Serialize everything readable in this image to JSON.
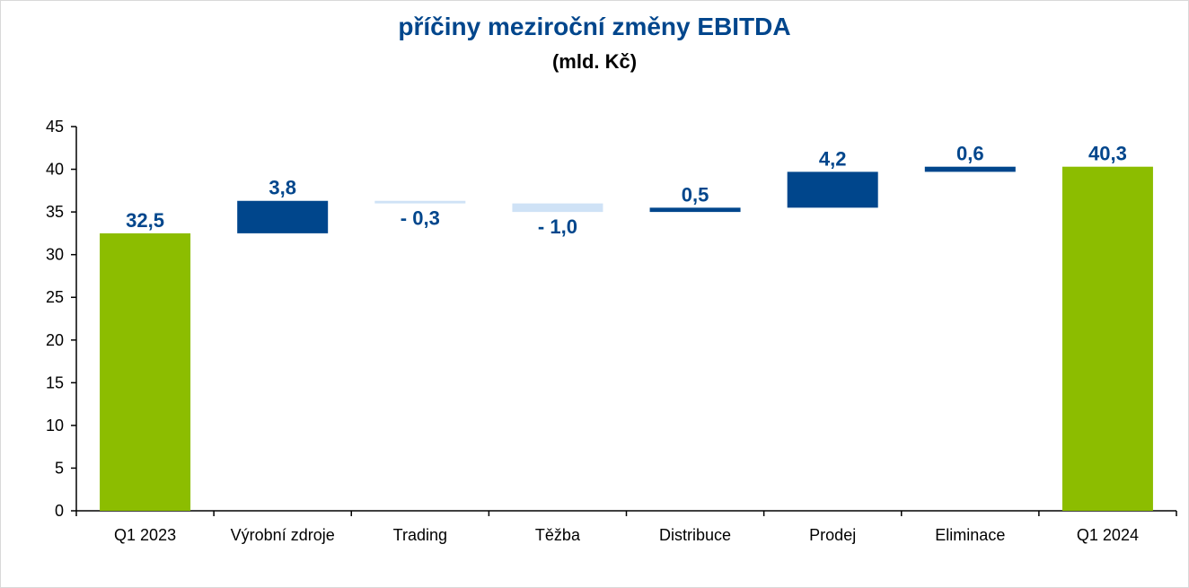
{
  "chart_data": {
    "type": "bar",
    "subtype": "waterfall",
    "title": "příčiny meziroční změny EBITDA",
    "subtitle": "(mld. Kč)",
    "xlabel": "",
    "ylabel": "",
    "ylim": [
      0,
      45
    ],
    "yticks": [
      0,
      5,
      10,
      15,
      20,
      25,
      30,
      35,
      40,
      45
    ],
    "grid": false,
    "legend": "none",
    "categories": [
      "Q1 2023",
      "Výrobní zdroje",
      "Trading",
      "Těžba",
      "Distribuce",
      "Prodej",
      "Eliminace",
      "Q1 2024"
    ],
    "bars": [
      {
        "category": "Q1 2023",
        "kind": "total",
        "start": 0,
        "end": 32.5,
        "label": "32,5"
      },
      {
        "category": "Výrobní zdroje",
        "kind": "increase",
        "start": 32.5,
        "end": 36.3,
        "label": "3,8"
      },
      {
        "category": "Trading",
        "kind": "decrease",
        "start": 36.3,
        "end": 36.0,
        "label": "- 0,3"
      },
      {
        "category": "Těžba",
        "kind": "decrease",
        "start": 36.0,
        "end": 35.0,
        "label": "- 1,0"
      },
      {
        "category": "Distribuce",
        "kind": "increase",
        "start": 35.0,
        "end": 35.5,
        "label": "0,5"
      },
      {
        "category": "Prodej",
        "kind": "increase",
        "start": 35.5,
        "end": 39.7,
        "label": "4,2"
      },
      {
        "category": "Eliminace",
        "kind": "increase",
        "start": 39.7,
        "end": 40.3,
        "label": "0,6"
      },
      {
        "category": "Q1 2024",
        "kind": "total",
        "start": 0,
        "end": 40.3,
        "label": "40,3"
      }
    ],
    "colors": {
      "total": "#8cbd00",
      "increase": "#00468c",
      "decrease": "#cfe2f6",
      "title": "#00468c",
      "label": "#00468c",
      "axis": "#000000"
    }
  }
}
